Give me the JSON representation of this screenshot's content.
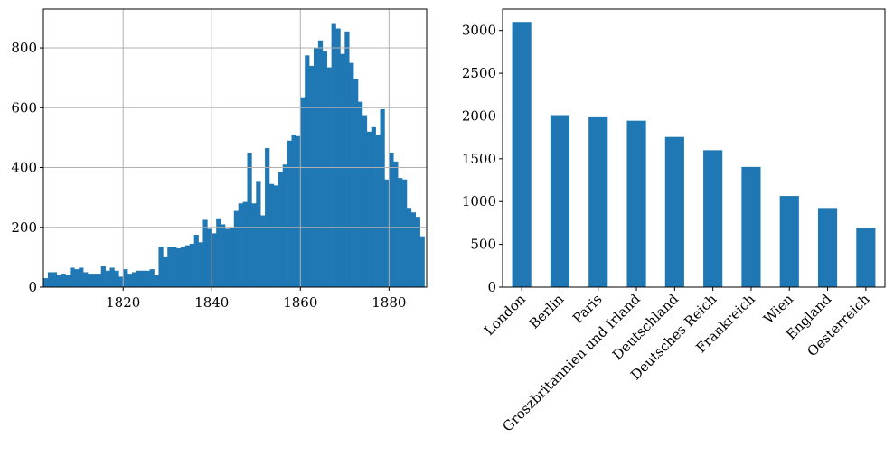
{
  "colors": {
    "bar": "#1f77b4",
    "grid": "#b0b0b0",
    "axis": "#000000"
  },
  "chart_data": [
    {
      "type": "bar",
      "subtype": "histogram",
      "title": "",
      "xlabel": "",
      "ylabel": "",
      "grid": true,
      "xlim": [
        1802,
        1888.5
      ],
      "ylim": [
        0,
        930
      ],
      "xticks": [
        1820,
        1840,
        1860,
        1880
      ],
      "yticks": [
        0,
        200,
        400,
        600,
        800
      ],
      "bin_width": 1,
      "x": [
        1802,
        1803,
        1804,
        1805,
        1806,
        1807,
        1808,
        1809,
        1810,
        1811,
        1812,
        1813,
        1814,
        1815,
        1816,
        1817,
        1818,
        1819,
        1820,
        1821,
        1822,
        1823,
        1824,
        1825,
        1826,
        1827,
        1828,
        1829,
        1830,
        1831,
        1832,
        1833,
        1834,
        1835,
        1836,
        1837,
        1838,
        1839,
        1840,
        1841,
        1842,
        1843,
        1844,
        1845,
        1846,
        1847,
        1848,
        1849,
        1850,
        1851,
        1852,
        1853,
        1854,
        1855,
        1856,
        1857,
        1858,
        1859,
        1860,
        1861,
        1862,
        1863,
        1864,
        1865,
        1866,
        1867,
        1868,
        1869,
        1870,
        1871,
        1872,
        1873,
        1874,
        1875,
        1876,
        1877,
        1878,
        1879,
        1880,
        1881,
        1882,
        1883,
        1884,
        1885,
        1886,
        1887
      ],
      "values": [
        30,
        50,
        50,
        40,
        45,
        40,
        65,
        60,
        65,
        50,
        45,
        45,
        45,
        70,
        55,
        65,
        55,
        35,
        60,
        45,
        50,
        55,
        55,
        55,
        60,
        40,
        135,
        100,
        135,
        135,
        130,
        135,
        140,
        145,
        175,
        150,
        225,
        195,
        180,
        230,
        210,
        195,
        200,
        255,
        280,
        285,
        450,
        280,
        355,
        240,
        465,
        345,
        340,
        385,
        410,
        490,
        510,
        505,
        635,
        775,
        740,
        800,
        825,
        790,
        735,
        880,
        865,
        780,
        855,
        750,
        695,
        620,
        575,
        520,
        535,
        510,
        595,
        360,
        450,
        420,
        365,
        360,
        265,
        250,
        235,
        170
      ],
      "note_values": "approximate counts read from the histogram"
    },
    {
      "type": "bar",
      "title": "",
      "xlabel": "",
      "ylabel": "",
      "grid": false,
      "ylim": [
        0,
        3250
      ],
      "yticks": [
        0,
        500,
        1000,
        1500,
        2000,
        2500,
        3000
      ],
      "categories": [
        "London",
        "Berlin",
        "Paris",
        "Groszbritannien und Irland",
        "Deutschland",
        "Deutsches Reich",
        "Frankreich",
        "Wien",
        "England",
        "Oesterreich"
      ],
      "values": [
        3100,
        2010,
        1985,
        1945,
        1755,
        1600,
        1405,
        1065,
        925,
        695
      ]
    }
  ]
}
